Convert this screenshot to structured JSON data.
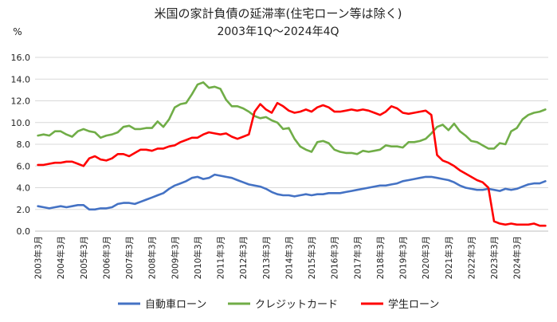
{
  "chart_data": {
    "type": "line",
    "title": "米国の家計負債の延滞率(住宅ローン等は除く)",
    "subtitle": "2003年1Q〜2024年4Q",
    "ylabel": "%",
    "ylim": [
      0,
      16
    ],
    "yticks": [
      "0.0",
      "2.0",
      "4.0",
      "6.0",
      "8.0",
      "10.0",
      "12.0",
      "14.0",
      "16.0"
    ],
    "x_tick_labels": [
      "2003年3月",
      "2004年3月",
      "2005年3月",
      "2006年3月",
      "2007年3月",
      "2008年3月",
      "2009年3月",
      "2010年3月",
      "2011年3月",
      "2012年3月",
      "2013年3月",
      "2014年3月",
      "2015年3月",
      "2016年3月",
      "2017年3月",
      "2018年3月",
      "2019年3月",
      "2020年3月",
      "2021年3月",
      "2022年3月",
      "2023年3月",
      "2024年3月"
    ],
    "grid": true,
    "legend_position": "bottom",
    "series": [
      {
        "name": "自動車ローン",
        "color": "#4472C4",
        "values": [
          2.3,
          2.2,
          2.1,
          2.2,
          2.3,
          2.2,
          2.3,
          2.4,
          2.4,
          2.0,
          2.0,
          2.1,
          2.1,
          2.2,
          2.5,
          2.6,
          2.6,
          2.5,
          2.7,
          2.9,
          3.1,
          3.3,
          3.5,
          3.9,
          4.2,
          4.4,
          4.6,
          4.9,
          5.0,
          4.8,
          4.9,
          5.2,
          5.1,
          5.0,
          4.9,
          4.7,
          4.5,
          4.3,
          4.2,
          4.1,
          3.9,
          3.6,
          3.4,
          3.3,
          3.3,
          3.2,
          3.3,
          3.4,
          3.3,
          3.4,
          3.4,
          3.5,
          3.5,
          3.5,
          3.6,
          3.7,
          3.8,
          3.9,
          4.0,
          4.1,
          4.2,
          4.2,
          4.3,
          4.4,
          4.6,
          4.7,
          4.8,
          4.9,
          5.0,
          5.0,
          4.9,
          4.8,
          4.7,
          4.5,
          4.2,
          4.0,
          3.9,
          3.8,
          3.8,
          3.9,
          3.8,
          3.7,
          3.9,
          3.8,
          3.9,
          4.1,
          4.3,
          4.4,
          4.4,
          4.6
        ]
      },
      {
        "name": "クレジットカード",
        "color": "#70AD47",
        "values": [
          8.8,
          8.9,
          8.8,
          9.2,
          9.2,
          8.9,
          8.7,
          9.2,
          9.4,
          9.2,
          9.1,
          8.6,
          8.8,
          8.9,
          9.1,
          9.6,
          9.7,
          9.4,
          9.4,
          9.5,
          9.5,
          10.1,
          9.6,
          10.3,
          11.4,
          11.7,
          11.8,
          12.6,
          13.5,
          13.7,
          13.2,
          13.3,
          13.1,
          12.1,
          11.5,
          11.5,
          11.3,
          11.0,
          10.6,
          10.4,
          10.5,
          10.2,
          10.0,
          9.4,
          9.5,
          8.5,
          7.8,
          7.5,
          7.3,
          8.2,
          8.3,
          8.1,
          7.5,
          7.3,
          7.2,
          7.2,
          7.1,
          7.4,
          7.3,
          7.4,
          7.5,
          7.9,
          7.8,
          7.8,
          7.7,
          8.2,
          8.2,
          8.3,
          8.5,
          9.0,
          9.6,
          9.8,
          9.3,
          9.9,
          9.2,
          8.8,
          8.3,
          8.2,
          7.9,
          7.6,
          7.6,
          8.1,
          8.0,
          9.2,
          9.5,
          10.3,
          10.7,
          10.9,
          11.0,
          11.2
        ]
      },
      {
        "name": "学生ローン",
        "color": "#FF0000",
        "values": [
          6.1,
          6.1,
          6.2,
          6.3,
          6.3,
          6.4,
          6.4,
          6.2,
          6.0,
          6.7,
          6.9,
          6.6,
          6.5,
          6.7,
          7.1,
          7.1,
          6.9,
          7.2,
          7.5,
          7.5,
          7.4,
          7.6,
          7.6,
          7.8,
          7.9,
          8.2,
          8.4,
          8.6,
          8.6,
          8.9,
          9.1,
          9.0,
          8.9,
          9.0,
          8.7,
          8.5,
          8.7,
          8.9,
          11.0,
          11.7,
          11.2,
          10.9,
          11.8,
          11.5,
          11.1,
          10.9,
          11.0,
          11.2,
          11.0,
          11.4,
          11.6,
          11.4,
          11.0,
          11.0,
          11.1,
          11.2,
          11.1,
          11.2,
          11.1,
          10.9,
          10.7,
          11.0,
          11.5,
          11.3,
          10.9,
          10.8,
          10.9,
          11.0,
          11.1,
          10.7,
          7.0,
          6.5,
          6.3,
          6.0,
          5.6,
          5.3,
          5.0,
          4.7,
          4.5,
          4.0,
          0.9,
          0.7,
          0.6,
          0.7,
          0.6,
          0.6,
          0.6,
          0.7,
          0.5,
          0.5
        ]
      }
    ]
  }
}
